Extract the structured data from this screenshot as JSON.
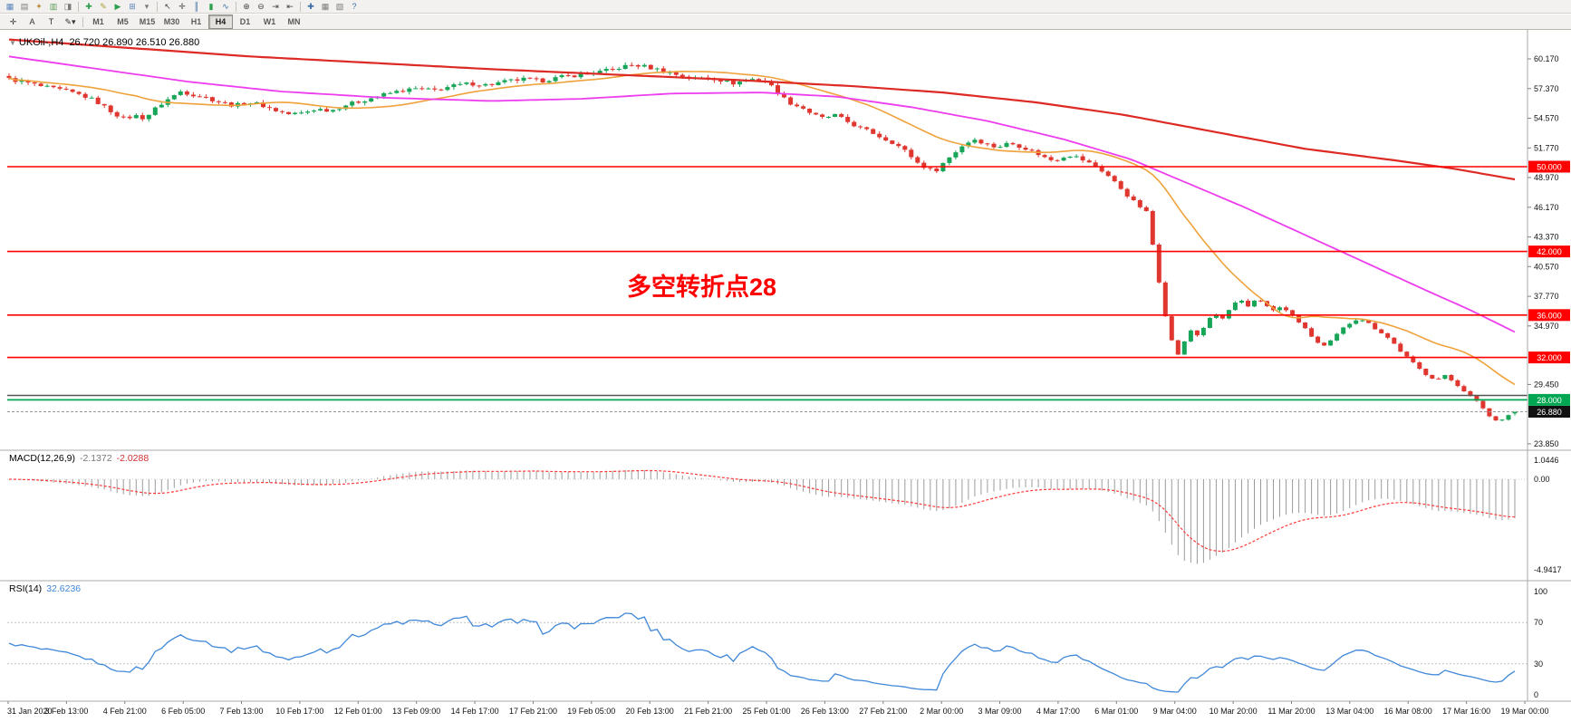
{
  "toolbar_main": {
    "icons": [
      {
        "name": "market-watch-icon",
        "glyph": "▦",
        "color": "#5a83bd"
      },
      {
        "name": "data-window-icon",
        "glyph": "▤",
        "color": "#7a7a7a"
      },
      {
        "name": "navigator-icon",
        "glyph": "✦",
        "color": "#b98f3f"
      },
      {
        "name": "terminal-icon",
        "glyph": "▥",
        "color": "#5a9a5a"
      },
      {
        "name": "strategy-tester-icon",
        "glyph": "◨",
        "color": "#7a7a7a"
      },
      {
        "name": "new-order-icon",
        "glyph": "✚",
        "color": "#2e9e4f"
      },
      {
        "name": "metaeditor-icon",
        "glyph": "✎",
        "color": "#ad9a2e"
      },
      {
        "name": "autotrading-icon",
        "glyph": "▶",
        "color": "#2e9e4f"
      },
      {
        "name": "new-chart-icon",
        "glyph": "⊞",
        "color": "#5a83bd"
      },
      {
        "name": "profiles-icon",
        "glyph": "▾",
        "color": "#7a7a7a"
      },
      {
        "name": "cursor-icon",
        "glyph": "↖",
        "color": "#444444"
      },
      {
        "name": "crosshair-icon",
        "glyph": "✛",
        "color": "#444444"
      },
      {
        "name": "bar-chart-icon",
        "glyph": "║",
        "color": "#3a6ea5"
      },
      {
        "name": "candle-chart-icon",
        "glyph": "▮",
        "color": "#2e9e4f"
      },
      {
        "name": "line-chart-icon",
        "glyph": "∿",
        "color": "#3a6ea5"
      },
      {
        "name": "zoom-in-icon",
        "glyph": "⊕",
        "color": "#444444"
      },
      {
        "name": "zoom-out-icon",
        "glyph": "⊖",
        "color": "#444444"
      },
      {
        "name": "auto-scroll-icon",
        "glyph": "⇥",
        "color": "#444444"
      },
      {
        "name": "chart-shift-icon",
        "glyph": "⇤",
        "color": "#444444"
      },
      {
        "name": "indicators-icon",
        "glyph": "✚",
        "color": "#3a6ea5"
      },
      {
        "name": "periods-icon",
        "glyph": "▦",
        "color": "#7a7a7a"
      },
      {
        "name": "templates-icon",
        "glyph": "▧",
        "color": "#7a7a7a"
      },
      {
        "name": "help-icon",
        "glyph": "?",
        "color": "#3a6ea5"
      }
    ]
  },
  "toolbar_tools": {
    "buttons": [
      {
        "name": "crosshair-tool",
        "glyph": "✛"
      },
      {
        "name": "text-label-tool",
        "glyph": "A"
      },
      {
        "name": "text-tool",
        "glyph": "T"
      },
      {
        "name": "draw-tools",
        "glyph": "✎",
        "caret": "▾"
      }
    ]
  },
  "timeframes": {
    "items": [
      "M1",
      "M5",
      "M15",
      "M30",
      "H1",
      "H4",
      "D1",
      "W1",
      "MN"
    ],
    "active": "H4"
  },
  "chart": {
    "title": "UKOil-,H4",
    "ohlc": "26.720 26.890 26.510 26.880",
    "annotation": "多空转折点28"
  },
  "indicators": {
    "macd": {
      "label": "MACD(12,26,9)",
      "value1": "-2.1372",
      "value2": "-2.0288"
    },
    "rsi": {
      "label": "RSI(14)",
      "value": "32.6236"
    }
  },
  "axis": {
    "price_ticks": [
      {
        "label": "60.170",
        "value": 60.17
      },
      {
        "label": "57.370",
        "value": 57.37
      },
      {
        "label": "54.570",
        "value": 54.57
      },
      {
        "label": "51.770",
        "value": 51.77
      },
      {
        "label": "48.970",
        "value": 48.97
      },
      {
        "label": "46.170",
        "value": 46.17
      },
      {
        "label": "43.370",
        "value": 43.37
      },
      {
        "label": "40.570",
        "value": 40.57
      },
      {
        "label": "37.770",
        "value": 37.77
      },
      {
        "label": "34.970",
        "value": 34.97
      },
      {
        "label": "29.450",
        "value": 29.45
      },
      {
        "label": "23.850",
        "value": 23.85
      }
    ],
    "badges": [
      {
        "label": "50.000",
        "value": 50.0,
        "bg": "#ff0000",
        "fg": "#ffffff"
      },
      {
        "label": "42.000",
        "value": 42.0,
        "bg": "#ff0000",
        "fg": "#ffffff"
      },
      {
        "label": "36.000",
        "value": 36.0,
        "bg": "#ff0000",
        "fg": "#ffffff"
      },
      {
        "label": "32.000",
        "value": 32.0,
        "bg": "#ff0000",
        "fg": "#ffffff"
      },
      {
        "label": "28.000",
        "value": 28.0,
        "bg": "#00a651",
        "fg": "#ffffff"
      },
      {
        "label": "26.880",
        "value": 26.88,
        "bg": "#111111",
        "fg": "#ffffff"
      }
    ],
    "macd_ticks": [
      {
        "label": "1.0446",
        "value": 1.0446
      },
      {
        "label": "0.00",
        "value": 0
      },
      {
        "label": "-4.9417",
        "value": -4.9417
      }
    ],
    "rsi_ticks": [
      {
        "label": "100",
        "value": 100
      },
      {
        "label": "70",
        "value": 70
      },
      {
        "label": "30",
        "value": 30
      },
      {
        "label": "0",
        "value": 0
      }
    ],
    "time_labels": [
      "31 Jan 2020",
      "3 Feb 13:00",
      "4 Feb 21:00",
      "6 Feb 05:00",
      "7 Feb 13:00",
      "10 Feb 17:00",
      "12 Feb 01:00",
      "13 Feb 09:00",
      "14 Feb 17:00",
      "17 Feb 21:00",
      "19 Feb 05:00",
      "20 Feb 13:00",
      "21 Feb 21:00",
      "25 Feb 01:00",
      "26 Feb 13:00",
      "27 Feb 21:00",
      "2 Mar 00:00",
      "3 Mar 09:00",
      "4 Mar 17:00",
      "6 Mar 01:00",
      "9 Mar 04:00",
      "10 Mar 20:00",
      "11 Mar 20:00",
      "13 Mar 04:00",
      "16 Mar 08:00",
      "17 Mar 16:00",
      "19 Mar 00:00"
    ]
  },
  "colors": {
    "candle_up": "#17a557",
    "candle_down": "#df372f",
    "ma_fast": "#efa23b",
    "ma_medium": "#ee3dee",
    "ma_slow": "#dd2a24",
    "macd_hist": "#9b9b9b",
    "macd_signal": "#ff3b3b",
    "rsi_line": "#3f87d8",
    "level_red": "#ff0000",
    "level_green": "#00a651",
    "annotation": "#ff0000"
  },
  "chart_data": {
    "type": "candlestick",
    "symbol": "UKOil-",
    "timeframe": "H4",
    "bars": 238,
    "x_range": [
      "31 Jan 2020",
      "19 Mar 2020 00:00"
    ],
    "y_visible_range": [
      23.25,
      62.3
    ],
    "last_candle": {
      "open": 26.72,
      "high": 26.89,
      "low": 26.51,
      "close": 26.88
    },
    "close_path_anchors": [
      [
        0,
        58.25
      ],
      [
        0.01,
        58.0
      ],
      [
        0.022,
        57.55
      ],
      [
        0.032,
        57.3
      ],
      [
        0.039,
        57.1
      ],
      [
        0.048,
        56.75
      ],
      [
        0.056,
        56.3
      ],
      [
        0.064,
        55.6
      ],
      [
        0.07,
        55.0
      ],
      [
        0.077,
        54.5
      ],
      [
        0.083,
        54.85
      ],
      [
        0.09,
        54.55
      ],
      [
        0.098,
        55.6
      ],
      [
        0.106,
        56.4
      ],
      [
        0.114,
        57.1
      ],
      [
        0.122,
        56.8
      ],
      [
        0.13,
        56.55
      ],
      [
        0.14,
        56.1
      ],
      [
        0.15,
        55.75
      ],
      [
        0.158,
        56.1
      ],
      [
        0.166,
        55.9
      ],
      [
        0.176,
        55.35
      ],
      [
        0.186,
        54.95
      ],
      [
        0.194,
        55.05
      ],
      [
        0.204,
        55.45
      ],
      [
        0.214,
        55.3
      ],
      [
        0.224,
        55.85
      ],
      [
        0.234,
        56.2
      ],
      [
        0.246,
        56.7
      ],
      [
        0.258,
        57.1
      ],
      [
        0.27,
        57.35
      ],
      [
        0.282,
        57.2
      ],
      [
        0.294,
        57.6
      ],
      [
        0.306,
        57.85
      ],
      [
        0.318,
        57.7
      ],
      [
        0.33,
        58.05
      ],
      [
        0.342,
        58.25
      ],
      [
        0.354,
        58.1
      ],
      [
        0.366,
        58.45
      ],
      [
        0.378,
        58.65
      ],
      [
        0.39,
        58.9
      ],
      [
        0.4,
        59.15
      ],
      [
        0.408,
        59.45
      ],
      [
        0.415,
        59.6
      ],
      [
        0.422,
        59.45
      ],
      [
        0.43,
        59.2
      ],
      [
        0.438,
        58.9
      ],
      [
        0.447,
        58.55
      ],
      [
        0.455,
        58.3
      ],
      [
        0.463,
        58.45
      ],
      [
        0.472,
        58.2
      ],
      [
        0.48,
        57.85
      ],
      [
        0.488,
        58.1
      ],
      [
        0.495,
        58.3
      ],
      [
        0.502,
        58.05
      ],
      [
        0.508,
        57.4
      ],
      [
        0.514,
        56.5
      ],
      [
        0.52,
        55.9
      ],
      [
        0.527,
        55.55
      ],
      [
        0.534,
        54.9
      ],
      [
        0.541,
        54.55
      ],
      [
        0.548,
        54.9
      ],
      [
        0.556,
        54.3
      ],
      [
        0.564,
        53.7
      ],
      [
        0.572,
        53.3
      ],
      [
        0.58,
        52.7
      ],
      [
        0.588,
        52.2
      ],
      [
        0.596,
        51.4
      ],
      [
        0.603,
        50.4
      ],
      [
        0.61,
        49.8
      ],
      [
        0.615,
        49.55
      ],
      [
        0.62,
        50.3
      ],
      [
        0.627,
        51.2
      ],
      [
        0.634,
        52.1
      ],
      [
        0.641,
        52.6
      ],
      [
        0.648,
        52.2
      ],
      [
        0.656,
        51.8
      ],
      [
        0.664,
        52.25
      ],
      [
        0.672,
        51.9
      ],
      [
        0.68,
        51.45
      ],
      [
        0.688,
        50.85
      ],
      [
        0.694,
        50.55
      ],
      [
        0.7,
        50.95
      ],
      [
        0.706,
        51.1
      ],
      [
        0.712,
        50.7
      ],
      [
        0.72,
        50.15
      ],
      [
        0.728,
        49.4
      ],
      [
        0.736,
        48.3
      ],
      [
        0.744,
        47.1
      ],
      [
        0.75,
        46.3
      ],
      [
        0.755,
        45.9
      ],
      [
        0.7585,
        43.5
      ],
      [
        0.762,
        40.5
      ],
      [
        0.7655,
        37.8
      ],
      [
        0.769,
        35.2
      ],
      [
        0.7725,
        33.4
      ],
      [
        0.776,
        32.2
      ],
      [
        0.78,
        33.3
      ],
      [
        0.785,
        34.6
      ],
      [
        0.79,
        34.0
      ],
      [
        0.7955,
        35.4
      ],
      [
        0.801,
        36.1
      ],
      [
        0.8065,
        35.6
      ],
      [
        0.812,
        36.9
      ],
      [
        0.8175,
        37.4
      ],
      [
        0.823,
        36.7
      ],
      [
        0.8285,
        37.6
      ],
      [
        0.834,
        37.1
      ],
      [
        0.8395,
        36.4
      ],
      [
        0.845,
        36.8
      ],
      [
        0.851,
        36.1
      ],
      [
        0.857,
        35.3
      ],
      [
        0.863,
        34.3
      ],
      [
        0.869,
        33.4
      ],
      [
        0.8745,
        33.0
      ],
      [
        0.88,
        33.9
      ],
      [
        0.8855,
        34.7
      ],
      [
        0.891,
        35.3
      ],
      [
        0.8965,
        35.75
      ],
      [
        0.902,
        35.3
      ],
      [
        0.9075,
        34.7
      ],
      [
        0.913,
        34.2
      ],
      [
        0.9185,
        33.5
      ],
      [
        0.924,
        32.6
      ],
      [
        0.93,
        31.8
      ],
      [
        0.936,
        31.0
      ],
      [
        0.942,
        30.3
      ],
      [
        0.948,
        29.9
      ],
      [
        0.954,
        30.3
      ],
      [
        0.96,
        29.6
      ],
      [
        0.966,
        28.9
      ],
      [
        0.972,
        28.2
      ],
      [
        0.978,
        27.4
      ],
      [
        0.984,
        26.3
      ],
      [
        0.989,
        25.95
      ],
      [
        0.994,
        26.45
      ],
      [
        1,
        26.88
      ]
    ],
    "overlays": {
      "sma_fast_period": 21,
      "ma_medium_anchors": [
        [
          0,
          60.4
        ],
        [
          0.06,
          59.2
        ],
        [
          0.12,
          58.0
        ],
        [
          0.18,
          57.1
        ],
        [
          0.25,
          56.5
        ],
        [
          0.32,
          56.2
        ],
        [
          0.38,
          56.4
        ],
        [
          0.44,
          56.9
        ],
        [
          0.5,
          57.0
        ],
        [
          0.55,
          56.6
        ],
        [
          0.6,
          55.6
        ],
        [
          0.65,
          54.3
        ],
        [
          0.7,
          52.6
        ],
        [
          0.745,
          50.7
        ],
        [
          0.78,
          48.6
        ],
        [
          0.82,
          46.2
        ],
        [
          0.86,
          43.6
        ],
        [
          0.9,
          41.0
        ],
        [
          0.94,
          38.4
        ],
        [
          0.97,
          36.5
        ],
        [
          1,
          34.4
        ]
      ],
      "ma_slow_anchors": [
        [
          0,
          62.0
        ],
        [
          0.08,
          61.2
        ],
        [
          0.16,
          60.4
        ],
        [
          0.24,
          59.8
        ],
        [
          0.32,
          59.2
        ],
        [
          0.4,
          58.7
        ],
        [
          0.48,
          58.2
        ],
        [
          0.56,
          57.6
        ],
        [
          0.62,
          57.0
        ],
        [
          0.68,
          56.1
        ],
        [
          0.74,
          54.9
        ],
        [
          0.8,
          53.3
        ],
        [
          0.86,
          51.7
        ],
        [
          0.92,
          50.6
        ],
        [
          0.96,
          49.8
        ],
        [
          1,
          48.8
        ]
      ]
    },
    "horizontal_lines": [
      {
        "price": 50.0,
        "color": "#ff0000",
        "width": 1.6
      },
      {
        "price": 42.0,
        "color": "#ff0000",
        "width": 1.6
      },
      {
        "price": 36.0,
        "color": "#ff0000",
        "width": 1.6
      },
      {
        "price": 32.0,
        "color": "#ff0000",
        "width": 1.6
      },
      {
        "price": 28.0,
        "color": "#00a651",
        "width": 1.8
      },
      {
        "price": 28.42,
        "color": "#555555",
        "width": 1.4
      },
      {
        "price": 26.88,
        "color": "#999999",
        "width": 1,
        "dash": "3,2"
      }
    ],
    "indicator_params": {
      "macd": [
        12,
        26,
        9
      ],
      "rsi_period": 14,
      "rsi_levels": [
        70,
        30
      ]
    }
  }
}
